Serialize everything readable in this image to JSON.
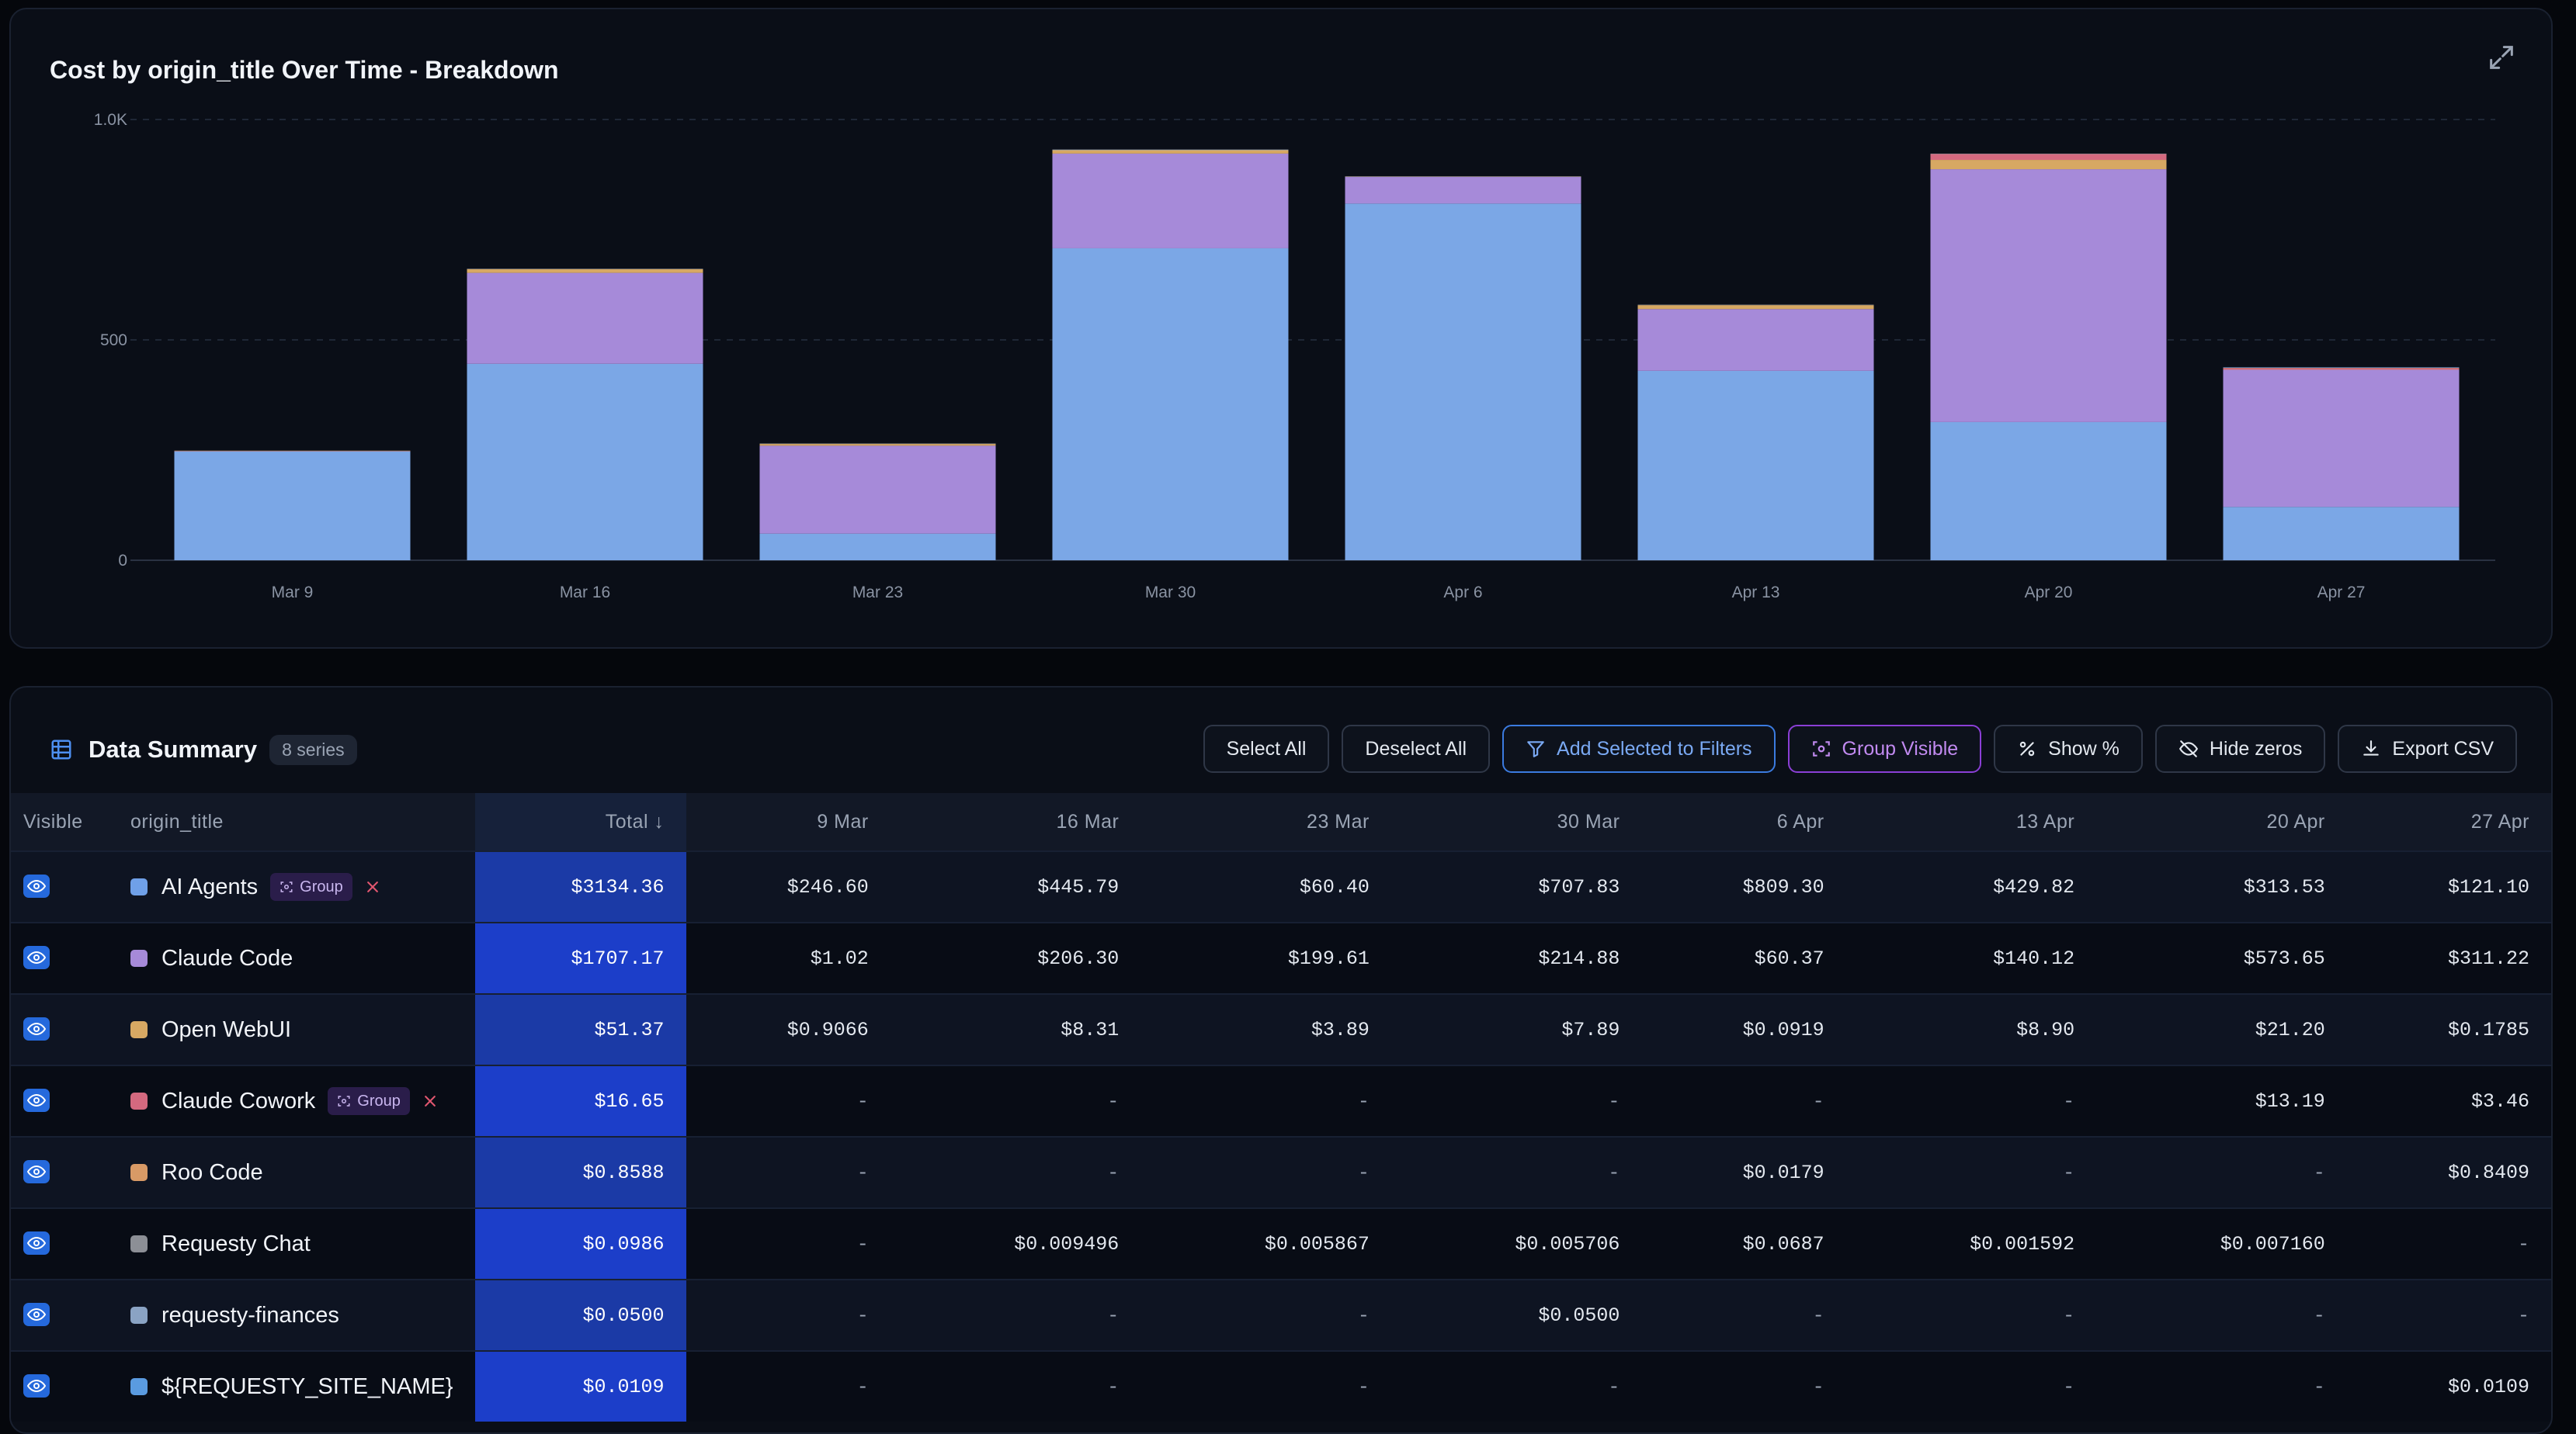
{
  "chart_data": {
    "type": "bar",
    "stacked": true,
    "title": "Cost by origin_title Over Time - Breakdown",
    "categories": [
      "Mar 9",
      "Mar 16",
      "Mar 23",
      "Mar 30",
      "Apr 6",
      "Apr 13",
      "Apr 20",
      "Apr 27"
    ],
    "ylim": [
      0,
      1000
    ],
    "yticks": [
      0,
      500,
      1000
    ],
    "ytick_labels": [
      "0",
      "500",
      "1.0K"
    ],
    "grid": true,
    "series": [
      {
        "name": "AI Agents",
        "color": "#7ba7e6",
        "values": [
          246.6,
          445.79,
          60.4,
          707.83,
          809.3,
          429.82,
          313.53,
          121.1
        ]
      },
      {
        "name": "Claude Code",
        "color": "#a68ad9",
        "values": [
          1.02,
          206.3,
          199.61,
          214.88,
          60.37,
          140.12,
          573.65,
          311.22
        ]
      },
      {
        "name": "Open WebUI",
        "color": "#d7a863",
        "values": [
          0.9066,
          8.31,
          3.89,
          7.89,
          0.0919,
          8.9,
          21.2,
          0.1785
        ]
      },
      {
        "name": "Claude Cowork",
        "color": "#d4697f",
        "values": [
          0,
          0,
          0,
          0,
          0,
          0,
          13.19,
          3.46
        ]
      },
      {
        "name": "Roo Code",
        "color": "#d89a66",
        "values": [
          0,
          0,
          0,
          0,
          0.0179,
          0,
          0,
          0.8409
        ]
      },
      {
        "name": "Requesty Chat",
        "color": "#8c8f96",
        "values": [
          0,
          0.009496,
          0.005867,
          0.005706,
          0.0687,
          0.001592,
          0.00716,
          0
        ]
      },
      {
        "name": "requesty-finances",
        "color": "#8aa3c4",
        "values": [
          0,
          0,
          0,
          0.05,
          0,
          0,
          0,
          0
        ]
      },
      {
        "name": "${REQUESTY_SITE_NAME}",
        "color": "#5a9be0",
        "values": [
          0,
          0,
          0,
          0,
          0,
          0,
          0,
          0.0109
        ]
      }
    ]
  },
  "summary": {
    "title": "Data Summary",
    "series_count": "8 series",
    "buttons": {
      "select_all": "Select All",
      "deselect_all": "Deselect All",
      "add_filters": "Add Selected to Filters",
      "group_visible": "Group Visible",
      "show_percent": "Show %",
      "hide_zeros": "Hide zeros",
      "export_csv": "Export CSV"
    },
    "headers": {
      "visible": "Visible",
      "origin_title": "origin_title",
      "total": "Total ↓",
      "dates": [
        "9 Mar",
        "16 Mar",
        "23 Mar",
        "30 Mar",
        "6 Apr",
        "13 Apr",
        "20 Apr",
        "27 Apr"
      ]
    },
    "group_label": "Group",
    "rows": [
      {
        "name": "AI Agents",
        "color": "#6fa0e8",
        "group": true,
        "total": "$3134.36",
        "values": [
          "$246.60",
          "$445.79",
          "$60.40",
          "$707.83",
          "$809.30",
          "$429.82",
          "$313.53",
          "$121.10"
        ]
      },
      {
        "name": "Claude Code",
        "color": "#a68ad9",
        "group": false,
        "total": "$1707.17",
        "values": [
          "$1.02",
          "$206.30",
          "$199.61",
          "$214.88",
          "$60.37",
          "$140.12",
          "$573.65",
          "$311.22"
        ]
      },
      {
        "name": "Open WebUI",
        "color": "#d7a863",
        "group": false,
        "total": "$51.37",
        "values": [
          "$0.9066",
          "$8.31",
          "$3.89",
          "$7.89",
          "$0.0919",
          "$8.90",
          "$21.20",
          "$0.1785"
        ]
      },
      {
        "name": "Claude Cowork",
        "color": "#d4697f",
        "group": true,
        "total": "$16.65",
        "values": [
          "-",
          "-",
          "-",
          "-",
          "-",
          "-",
          "$13.19",
          "$3.46"
        ]
      },
      {
        "name": "Roo Code",
        "color": "#d89a66",
        "group": false,
        "total": "$0.8588",
        "values": [
          "-",
          "-",
          "-",
          "-",
          "$0.0179",
          "-",
          "-",
          "$0.8409"
        ]
      },
      {
        "name": "Requesty Chat",
        "color": "#8c8f96",
        "group": false,
        "total": "$0.0986",
        "values": [
          "-",
          "$0.009496",
          "$0.005867",
          "$0.005706",
          "$0.0687",
          "$0.001592",
          "$0.007160",
          "-"
        ]
      },
      {
        "name": "requesty-finances",
        "color": "#8aa3c4",
        "group": false,
        "total": "$0.0500",
        "values": [
          "-",
          "-",
          "-",
          "$0.0500",
          "-",
          "-",
          "-",
          "-"
        ]
      },
      {
        "name": "${REQUESTY_SITE_NAME}",
        "color": "#5a9be0",
        "group": false,
        "total": "$0.0109",
        "values": [
          "-",
          "-",
          "-",
          "-",
          "-",
          "-",
          "-",
          "$0.0109"
        ]
      }
    ]
  }
}
